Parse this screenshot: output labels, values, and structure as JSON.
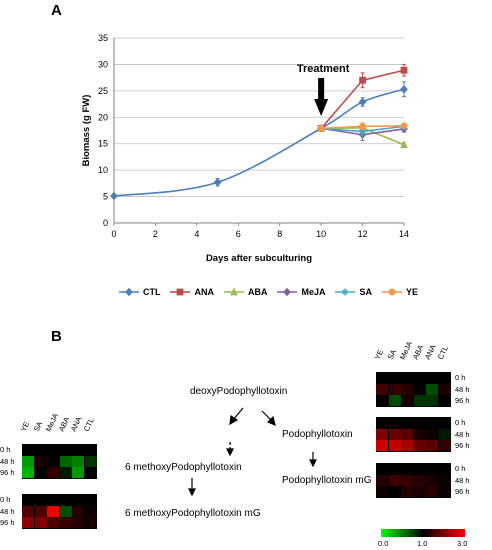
{
  "panels": {
    "a": "A",
    "b": "B"
  },
  "chart_data": {
    "type": "line",
    "xlabel": "Days after subculturing",
    "ylabel": "Biomass (g FW)",
    "xlim": [
      0,
      14
    ],
    "ylim": [
      0,
      35
    ],
    "xticks": [
      0,
      2,
      4,
      6,
      8,
      10,
      12,
      14
    ],
    "yticks": [
      0,
      5,
      10,
      15,
      20,
      25,
      30,
      35
    ],
    "grid": "horizontal",
    "legend_position": "bottom",
    "annotation": "Treatment",
    "annotation_x": 10,
    "series": [
      {
        "name": "CTL",
        "color": "#4a7ebb",
        "marker": "diamond",
        "x": [
          0,
          5,
          10,
          12,
          14
        ],
        "y": [
          5.1,
          7.7,
          17.9,
          22.9,
          25.3
        ]
      },
      {
        "name": "ANA",
        "color": "#be4b48",
        "marker": "square",
        "x": [
          10,
          12,
          14
        ],
        "y": [
          17.9,
          27.0,
          28.9
        ]
      },
      {
        "name": "ABA",
        "color": "#98b954",
        "marker": "triangle",
        "x": [
          10,
          12,
          14
        ],
        "y": [
          17.9,
          18.0,
          14.8
        ]
      },
      {
        "name": "MeJA",
        "color": "#7d60a0",
        "marker": "diamond",
        "x": [
          10,
          12,
          14
        ],
        "y": [
          17.9,
          16.7,
          17.8
        ]
      },
      {
        "name": "SA",
        "color": "#46aac5",
        "marker": "star",
        "x": [
          10,
          12,
          14
        ],
        "y": [
          17.9,
          17.3,
          18.3
        ]
      },
      {
        "name": "YE",
        "color": "#f79646",
        "marker": "circle",
        "x": [
          10,
          12,
          14
        ],
        "y": [
          17.9,
          18.3,
          18.4
        ]
      }
    ]
  },
  "pathway": {
    "deoxy": "deoxyPodophyllotoxin",
    "podo": "Podophyllotoxin",
    "podo_mg": "Podophyllotoxin mG",
    "six_methoxy": "6 methoxyPodophyllotoxin",
    "six_methoxy_mg": "6 methoxyPodophyllotoxin mG"
  },
  "heatmaps": {
    "left_columns": [
      "YE",
      "SA",
      "MeJA",
      "ABA",
      "ANA",
      "CTL"
    ],
    "right_columns": [
      "YE",
      "SA",
      "MeJA",
      "ABA",
      "ANA",
      "CTL"
    ],
    "rows": [
      "0 h",
      "48 h",
      "96 h"
    ],
    "left": [
      {
        "values": [
          [
            1.0,
            1.0,
            1.0,
            1.0,
            1.0,
            1.0
          ],
          [
            0.4,
            1.2,
            1.0,
            0.6,
            0.5,
            0.8
          ],
          [
            0.3,
            1.0,
            1.4,
            0.9,
            0.4,
            1.0
          ]
        ]
      },
      {
        "values": [
          [
            1.0,
            1.0,
            1.0,
            1.0,
            1.0,
            1.0
          ],
          [
            1.6,
            1.6,
            2.9,
            0.7,
            1.3,
            1.1
          ],
          [
            2.1,
            2.0,
            1.6,
            1.4,
            1.3,
            1.2
          ]
        ]
      }
    ],
    "right": [
      {
        "values": [
          [
            1.0,
            1.0,
            1.0,
            1.0,
            1.0,
            1.0
          ],
          [
            1.5,
            1.4,
            1.3,
            1.0,
            0.7,
            1.2
          ],
          [
            1.0,
            0.7,
            1.2,
            0.8,
            0.8,
            1.0
          ]
        ]
      },
      {
        "values": [
          [
            1.0,
            1.0,
            1.0,
            1.0,
            1.0,
            1.0
          ],
          [
            2.0,
            1.8,
            1.7,
            1.2,
            1.1,
            0.9
          ],
          [
            2.6,
            2.5,
            2.3,
            1.8,
            1.7,
            1.4
          ]
        ]
      },
      {
        "values": [
          [
            1.0,
            1.0,
            1.0,
            1.0,
            1.0,
            1.0
          ],
          [
            1.3,
            1.5,
            1.4,
            1.3,
            1.2,
            1.1
          ],
          [
            1.1,
            1.0,
            1.3,
            1.2,
            1.3,
            1.1
          ]
        ]
      }
    ],
    "scale": {
      "min_label": "0.0",
      "mid_label": "1.0",
      "max_label": "3.0"
    }
  }
}
